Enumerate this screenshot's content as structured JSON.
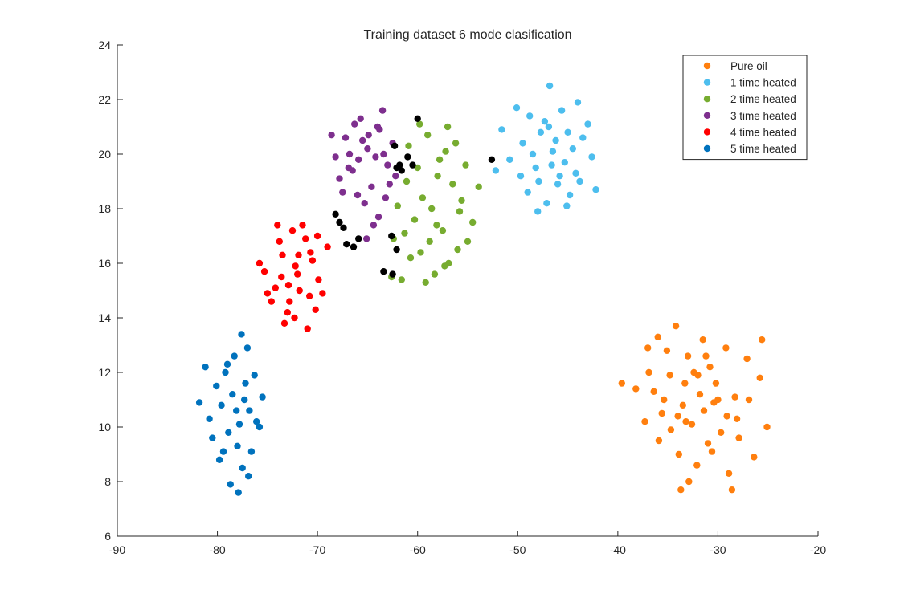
{
  "chart_data": {
    "type": "scatter",
    "title": "Training dataset 6 mode clasification",
    "xlabel": "",
    "ylabel": "",
    "xlim": [
      -90,
      -20
    ],
    "ylim": [
      6,
      24
    ],
    "x_ticks": [
      -90,
      -80,
      -70,
      -60,
      -50,
      -40,
      -30,
      -20
    ],
    "y_ticks": [
      6,
      8,
      10,
      12,
      14,
      16,
      18,
      20,
      22,
      24
    ],
    "grid": false,
    "legend_position": "top-right",
    "series": [
      {
        "name": "Pure oil",
        "color": "#ff7f0e",
        "points": [
          [
            -31.8,
            11.2
          ],
          [
            -33.5,
            10.8
          ],
          [
            -30.2,
            11.6
          ],
          [
            -32.6,
            10.1
          ],
          [
            -34.8,
            11.9
          ],
          [
            -29.1,
            10.4
          ],
          [
            -33.0,
            12.6
          ],
          [
            -35.6,
            10.5
          ],
          [
            -31.0,
            9.4
          ],
          [
            -28.3,
            11.1
          ],
          [
            -36.4,
            11.3
          ],
          [
            -32.1,
            8.6
          ],
          [
            -34.2,
            13.7
          ],
          [
            -27.1,
            12.5
          ],
          [
            -25.8,
            11.8
          ],
          [
            -37.3,
            10.2
          ],
          [
            -30.8,
            12.2
          ],
          [
            -33.9,
            9.0
          ],
          [
            -29.7,
            9.8
          ],
          [
            -31.5,
            13.2
          ],
          [
            -35.1,
            12.8
          ],
          [
            -26.4,
            8.9
          ],
          [
            -28.9,
            8.3
          ],
          [
            -32.9,
            8.0
          ],
          [
            -30.4,
            10.9
          ],
          [
            -36.9,
            12.0
          ],
          [
            -38.2,
            11.4
          ],
          [
            -27.9,
            9.6
          ],
          [
            -34.7,
            9.9
          ],
          [
            -25.1,
            10.0
          ],
          [
            -33.3,
            11.6
          ],
          [
            -31.4,
            10.6
          ],
          [
            -30.0,
            11.0
          ],
          [
            -32.4,
            12.0
          ],
          [
            -29.2,
            12.9
          ],
          [
            -35.9,
            9.5
          ],
          [
            -37.0,
            12.9
          ],
          [
            -34.0,
            10.4
          ],
          [
            -28.1,
            10.3
          ],
          [
            -33.7,
            7.7
          ],
          [
            -26.9,
            11.0
          ],
          [
            -30.6,
            9.1
          ],
          [
            -32.0,
            11.9
          ],
          [
            -39.6,
            11.6
          ],
          [
            -36.0,
            13.3
          ],
          [
            -28.6,
            7.7
          ],
          [
            -25.6,
            13.2
          ],
          [
            -31.2,
            12.6
          ],
          [
            -33.2,
            10.2
          ],
          [
            -35.4,
            11.0
          ]
        ]
      },
      {
        "name": "1 time heated",
        "color": "#4dbeee",
        "points": [
          [
            -46.5,
            20.1
          ],
          [
            -48.2,
            19.5
          ],
          [
            -45.0,
            20.8
          ],
          [
            -47.3,
            21.2
          ],
          [
            -44.2,
            19.3
          ],
          [
            -49.5,
            20.4
          ],
          [
            -46.0,
            18.9
          ],
          [
            -43.5,
            20.6
          ],
          [
            -47.9,
            19.0
          ],
          [
            -45.6,
            21.6
          ],
          [
            -50.8,
            19.8
          ],
          [
            -44.8,
            18.5
          ],
          [
            -42.6,
            19.9
          ],
          [
            -48.8,
            21.4
          ],
          [
            -46.8,
            22.5
          ],
          [
            -51.6,
            20.9
          ],
          [
            -43.0,
            21.1
          ],
          [
            -47.1,
            18.2
          ],
          [
            -45.3,
            19.7
          ],
          [
            -49.0,
            18.6
          ],
          [
            -44.0,
            21.9
          ],
          [
            -46.2,
            20.5
          ],
          [
            -48.5,
            20.0
          ],
          [
            -45.8,
            19.2
          ],
          [
            -52.2,
            19.4
          ],
          [
            -42.2,
            18.7
          ],
          [
            -47.7,
            20.8
          ],
          [
            -44.5,
            20.2
          ],
          [
            -46.6,
            19.6
          ],
          [
            -50.1,
            21.7
          ],
          [
            -48.0,
            17.9
          ],
          [
            -43.8,
            19.0
          ],
          [
            -45.1,
            18.1
          ],
          [
            -49.7,
            19.2
          ],
          [
            -46.9,
            21.0
          ]
        ]
      },
      {
        "name": "2 time heated",
        "color": "#77ac30",
        "points": [
          [
            -58.0,
            19.2
          ],
          [
            -59.5,
            18.4
          ],
          [
            -57.2,
            20.1
          ],
          [
            -60.3,
            17.6
          ],
          [
            -56.5,
            18.9
          ],
          [
            -58.8,
            16.8
          ],
          [
            -61.1,
            19.0
          ],
          [
            -57.5,
            17.2
          ],
          [
            -59.0,
            20.7
          ],
          [
            -55.8,
            17.9
          ],
          [
            -60.7,
            16.2
          ],
          [
            -58.3,
            15.6
          ],
          [
            -56.0,
            16.5
          ],
          [
            -62.0,
            18.1
          ],
          [
            -59.8,
            21.1
          ],
          [
            -57.0,
            21.0
          ],
          [
            -61.6,
            15.4
          ],
          [
            -55.2,
            19.6
          ],
          [
            -58.6,
            18.0
          ],
          [
            -60.0,
            19.5
          ],
          [
            -56.9,
            16.0
          ],
          [
            -59.2,
            15.3
          ],
          [
            -54.5,
            17.5
          ],
          [
            -62.4,
            16.9
          ],
          [
            -57.8,
            19.8
          ],
          [
            -55.6,
            18.3
          ],
          [
            -60.9,
            20.3
          ],
          [
            -58.1,
            17.4
          ],
          [
            -59.7,
            16.4
          ],
          [
            -53.9,
            18.8
          ],
          [
            -56.2,
            20.4
          ],
          [
            -61.3,
            17.1
          ],
          [
            -57.3,
            15.9
          ],
          [
            -62.6,
            15.5
          ],
          [
            -55.0,
            16.8
          ]
        ]
      },
      {
        "name": "3 time heated",
        "color": "#7e2f8e",
        "points": [
          [
            -65.0,
            20.2
          ],
          [
            -66.5,
            19.4
          ],
          [
            -63.8,
            20.9
          ],
          [
            -64.6,
            18.8
          ],
          [
            -67.2,
            20.6
          ],
          [
            -63.0,
            19.6
          ],
          [
            -65.7,
            21.3
          ],
          [
            -66.0,
            18.5
          ],
          [
            -62.5,
            20.4
          ],
          [
            -64.2,
            19.9
          ],
          [
            -67.8,
            19.1
          ],
          [
            -65.3,
            18.2
          ],
          [
            -63.5,
            21.6
          ],
          [
            -66.8,
            20.0
          ],
          [
            -64.9,
            20.7
          ],
          [
            -62.8,
            18.9
          ],
          [
            -68.6,
            20.7
          ],
          [
            -65.9,
            19.8
          ],
          [
            -63.2,
            18.4
          ],
          [
            -66.3,
            21.1
          ],
          [
            -64.4,
            17.4
          ],
          [
            -62.2,
            19.2
          ],
          [
            -67.5,
            18.6
          ],
          [
            -65.1,
            16.9
          ],
          [
            -63.9,
            17.7
          ],
          [
            -66.9,
            19.5
          ],
          [
            -64.0,
            21.0
          ],
          [
            -65.5,
            20.5
          ],
          [
            -68.2,
            19.9
          ],
          [
            -63.4,
            20.0
          ]
        ]
      },
      {
        "name": "4 time heated",
        "color": "#ff0000",
        "points": [
          [
            -72.0,
            15.6
          ],
          [
            -73.5,
            16.3
          ],
          [
            -70.8,
            14.8
          ],
          [
            -72.8,
            14.6
          ],
          [
            -71.2,
            16.9
          ],
          [
            -74.2,
            15.1
          ],
          [
            -70.5,
            16.1
          ],
          [
            -72.5,
            17.2
          ],
          [
            -73.0,
            14.2
          ],
          [
            -71.8,
            15.0
          ],
          [
            -75.3,
            15.7
          ],
          [
            -69.9,
            15.4
          ],
          [
            -71.0,
            13.6
          ],
          [
            -73.8,
            16.8
          ],
          [
            -72.2,
            15.9
          ],
          [
            -69.0,
            16.6
          ],
          [
            -74.6,
            14.6
          ],
          [
            -70.2,
            14.3
          ],
          [
            -72.9,
            15.2
          ],
          [
            -71.5,
            17.4
          ],
          [
            -75.8,
            16.0
          ],
          [
            -70.7,
            16.4
          ],
          [
            -73.3,
            13.8
          ],
          [
            -69.5,
            14.9
          ],
          [
            -71.9,
            16.3
          ],
          [
            -74.0,
            17.4
          ],
          [
            -72.3,
            14.0
          ],
          [
            -70.0,
            17.0
          ],
          [
            -75.0,
            14.9
          ],
          [
            -73.6,
            15.5
          ]
        ]
      },
      {
        "name": "5 time heated",
        "color": "#0072bd",
        "points": [
          [
            -78.5,
            11.2
          ],
          [
            -77.8,
            10.1
          ],
          [
            -79.2,
            12.0
          ],
          [
            -77.2,
            11.6
          ],
          [
            -78.0,
            9.3
          ],
          [
            -76.8,
            10.6
          ],
          [
            -79.6,
            10.8
          ],
          [
            -78.3,
            12.6
          ],
          [
            -77.5,
            8.5
          ],
          [
            -76.3,
            11.9
          ],
          [
            -80.1,
            11.5
          ],
          [
            -78.9,
            9.8
          ],
          [
            -77.0,
            12.9
          ],
          [
            -79.8,
            8.8
          ],
          [
            -76.6,
            9.1
          ],
          [
            -78.7,
            7.9
          ],
          [
            -77.6,
            13.4
          ],
          [
            -80.8,
            10.3
          ],
          [
            -76.1,
            10.2
          ],
          [
            -79.0,
            12.3
          ],
          [
            -81.8,
            10.9
          ],
          [
            -77.9,
            7.6
          ],
          [
            -80.5,
            9.6
          ],
          [
            -75.5,
            11.1
          ],
          [
            -78.1,
            10.6
          ],
          [
            -77.3,
            11.0
          ],
          [
            -79.4,
            9.1
          ],
          [
            -76.9,
            8.2
          ],
          [
            -81.2,
            12.2
          ],
          [
            -75.8,
            10.0
          ]
        ]
      },
      {
        "name": "",
        "color": "#000000",
        "points": [
          [
            -60.0,
            21.3
          ],
          [
            -62.3,
            20.3
          ],
          [
            -61.0,
            19.9
          ],
          [
            -61.8,
            19.6
          ],
          [
            -62.1,
            19.5
          ],
          [
            -61.6,
            19.4
          ],
          [
            -60.5,
            19.6
          ],
          [
            -52.6,
            19.8
          ],
          [
            -68.2,
            17.8
          ],
          [
            -67.8,
            17.5
          ],
          [
            -67.4,
            17.3
          ],
          [
            -67.1,
            16.7
          ],
          [
            -66.4,
            16.6
          ],
          [
            -65.9,
            16.9
          ],
          [
            -62.6,
            17.0
          ],
          [
            -62.1,
            16.5
          ],
          [
            -63.4,
            15.7
          ],
          [
            -62.5,
            15.6
          ]
        ]
      }
    ]
  }
}
